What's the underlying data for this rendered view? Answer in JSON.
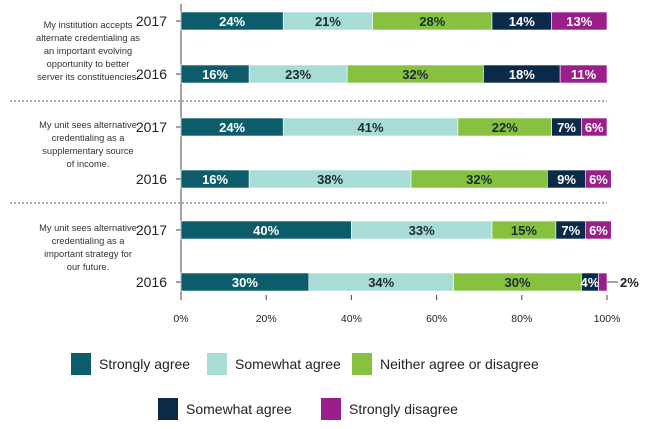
{
  "colors": {
    "strongly_agree": "#0c5c6b",
    "somewhat_agree": "#a8dcd6",
    "neither": "#86c240",
    "somewhat_disagree": "#0b2a4a",
    "strongly_disagree": "#9a1f8a"
  },
  "chart_data": {
    "type": "bar",
    "orientation": "horizontal-stacked",
    "xlim": [
      0,
      100
    ],
    "xticks": [
      "0%",
      "20%",
      "40%",
      "60%",
      "80%",
      "100%"
    ],
    "series": [
      {
        "name": "Strongly agree",
        "color_key": "strongly_agree"
      },
      {
        "name": "Somewhat agree",
        "color_key": "somewhat_agree"
      },
      {
        "name": "Neither agree or disagree",
        "color_key": "neither"
      },
      {
        "name": "Somewhat agree",
        "color_key": "somewhat_disagree"
      },
      {
        "name": "Strongly disagree",
        "color_key": "strongly_disagree"
      }
    ],
    "groups": [
      {
        "question": [
          "My institution accepts",
          "alternate credentialing as",
          "an important evolving",
          "opportunity to better",
          "server its constituencies."
        ],
        "bars": [
          {
            "year": "2017",
            "values": [
              24,
              21,
              28,
              14,
              13
            ]
          },
          {
            "year": "2016",
            "values": [
              16,
              23,
              32,
              18,
              11
            ]
          }
        ]
      },
      {
        "question": [
          "My unit sees alternative",
          "credentialing as a",
          "supplementary source",
          "of income."
        ],
        "bars": [
          {
            "year": "2017",
            "values": [
              24,
              41,
              22,
              7,
              6
            ]
          },
          {
            "year": "2016",
            "values": [
              16,
              38,
              32,
              9,
              6
            ]
          }
        ]
      },
      {
        "question": [
          "My unit sees alternative",
          "credentialing as a",
          "important strategy for",
          "our future."
        ],
        "bars": [
          {
            "year": "2017",
            "values": [
              40,
              33,
              15,
              7,
              6
            ]
          },
          {
            "year": "2016",
            "values": [
              30,
              34,
              30,
              4,
              2
            ]
          }
        ]
      }
    ]
  }
}
